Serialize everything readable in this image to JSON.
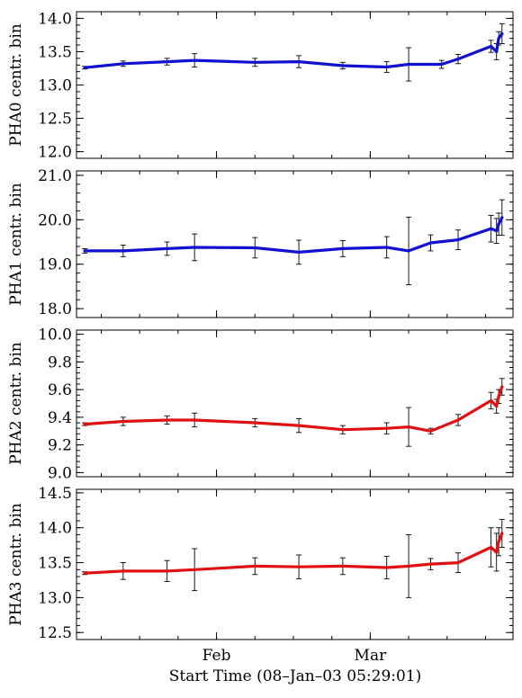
{
  "chart_data": {
    "type": "line",
    "xlabel": "Start Time (08–Jan–03 05:29:01)",
    "x_tick_labels": [
      "Feb",
      "Mar"
    ],
    "x_ticks_days": [
      24,
      52
    ],
    "x_range_days": [
      0,
      74
    ],
    "panels": [
      {
        "ylabel": "PHA0 centr. bin",
        "ylim": [
          11.9,
          14.1
        ],
        "yticks": [
          12.0,
          12.5,
          13.0,
          13.5,
          14.0
        ],
        "ytick_labels": [
          "12.0",
          "12.5",
          "13.0",
          "13.5",
          "14.0"
        ],
        "color": "#1010d0",
        "x": [
          0,
          7,
          15,
          20,
          31,
          39,
          47,
          55,
          59,
          65,
          68,
          74,
          75,
          75.4,
          76
        ],
        "y": [
          13.26,
          13.32,
          13.35,
          13.37,
          13.34,
          13.35,
          13.29,
          13.27,
          13.31,
          13.31,
          13.39,
          13.58,
          13.5,
          13.7,
          13.77
        ],
        "err": [
          0.02,
          0.04,
          0.05,
          0.1,
          0.06,
          0.09,
          0.05,
          0.08,
          0.25,
          0.06,
          0.07,
          0.09,
          0.12,
          0.1,
          0.15
        ]
      },
      {
        "ylabel": "PHA1 centr. bin",
        "ylim": [
          17.8,
          21.1
        ],
        "yticks": [
          18.0,
          19.0,
          20.0,
          21.0
        ],
        "ytick_labels": [
          "18.0",
          "19.0",
          "20.0",
          "21.0"
        ],
        "color": "#1010d0",
        "x": [
          0,
          7,
          15,
          20,
          31,
          39,
          47,
          55,
          59,
          63,
          68,
          74,
          75,
          75.4,
          76
        ],
        "y": [
          19.3,
          19.3,
          19.35,
          19.38,
          19.37,
          19.27,
          19.35,
          19.38,
          19.3,
          19.48,
          19.55,
          19.8,
          19.75,
          19.9,
          20.05
        ],
        "err": [
          0.05,
          0.13,
          0.15,
          0.3,
          0.23,
          0.27,
          0.18,
          0.24,
          0.76,
          0.18,
          0.22,
          0.3,
          0.28,
          0.25,
          0.4
        ]
      },
      {
        "ylabel": "PHA2 centr. bin",
        "ylim": [
          8.97,
          10.03
        ],
        "yticks": [
          9.0,
          9.2,
          9.4,
          9.6,
          9.8,
          10.0
        ],
        "ytick_labels": [
          "9.0",
          "9.2",
          "9.4",
          "9.6",
          "9.8",
          "10.0"
        ],
        "color": "#e01010",
        "x": [
          0,
          7,
          15,
          20,
          31,
          39,
          47,
          55,
          59,
          63,
          68,
          74,
          75,
          75.4,
          76
        ],
        "y": [
          9.35,
          9.37,
          9.38,
          9.38,
          9.36,
          9.34,
          9.31,
          9.32,
          9.33,
          9.3,
          9.38,
          9.52,
          9.48,
          9.55,
          9.62
        ],
        "err": [
          0.01,
          0.03,
          0.03,
          0.05,
          0.03,
          0.05,
          0.03,
          0.04,
          0.14,
          0.02,
          0.04,
          0.06,
          0.05,
          0.05,
          0.06
        ]
      },
      {
        "ylabel": "PHA3 centr. bin",
        "ylim": [
          12.4,
          14.55
        ],
        "yticks": [
          12.5,
          13.0,
          13.5,
          14.0,
          14.5
        ],
        "ytick_labels": [
          "12.5",
          "13.0",
          "13.5",
          "14.0",
          "14.5"
        ],
        "color": "#e01010",
        "x": [
          0,
          7,
          15,
          20,
          31,
          39,
          47,
          55,
          59,
          63,
          68,
          74,
          75,
          75.4,
          76
        ],
        "y": [
          13.35,
          13.38,
          13.38,
          13.4,
          13.45,
          13.44,
          13.45,
          13.43,
          13.45,
          13.48,
          13.5,
          13.72,
          13.65,
          13.8,
          13.92
        ],
        "err": [
          0.02,
          0.12,
          0.15,
          0.3,
          0.12,
          0.17,
          0.12,
          0.16,
          0.45,
          0.08,
          0.14,
          0.28,
          0.27,
          0.2,
          0.2
        ]
      }
    ]
  }
}
